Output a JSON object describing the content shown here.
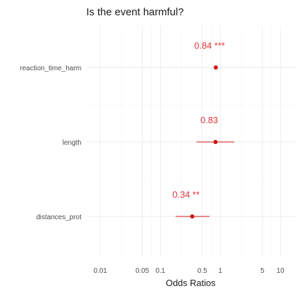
{
  "chart_data": {
    "type": "scatter",
    "title": "Is the event harmful?",
    "xlabel": "Odds Ratios",
    "ylabel": "",
    "x_scale": "log",
    "xlim": [
      0.006,
      18
    ],
    "x_ticks": [
      {
        "value": 0.01,
        "label": "0.01"
      },
      {
        "value": 0.05,
        "label": "0.05"
      },
      {
        "value": 0.1,
        "label": "0.1"
      },
      {
        "value": 0.5,
        "label": "0.5"
      },
      {
        "value": 1,
        "label": "1"
      },
      {
        "value": 5,
        "label": "5"
      },
      {
        "value": 10,
        "label": "10"
      }
    ],
    "grid": true,
    "legend": "none",
    "point_color": "#cc1111",
    "label_color": "#e0333a",
    "categories": [
      "reaction_time_harm",
      "length",
      "distances_prot"
    ],
    "estimates": [
      {
        "term": "reaction_time_harm",
        "estimate": 0.84,
        "conf_low": 0.8,
        "conf_high": 0.89,
        "label": "0.84 ***"
      },
      {
        "term": "length",
        "estimate": 0.83,
        "conf_low": 0.4,
        "conf_high": 1.7,
        "label": "0.83"
      },
      {
        "term": "distances_prot",
        "estimate": 0.34,
        "conf_low": 0.18,
        "conf_high": 0.66,
        "label": "0.34 **"
      }
    ]
  }
}
